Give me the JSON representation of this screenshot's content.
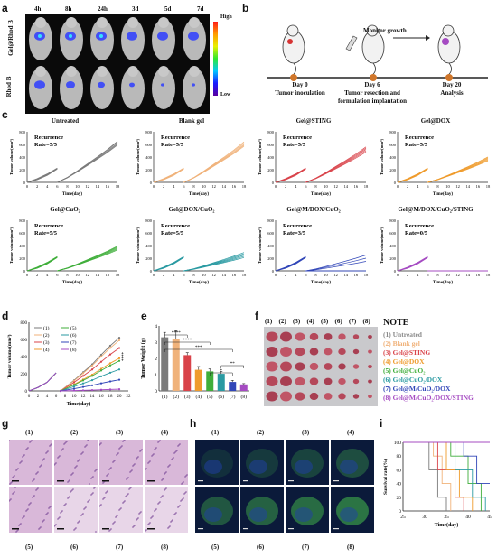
{
  "panel_labels": {
    "a": "a",
    "b": "b",
    "c": "c",
    "d": "d",
    "e": "e",
    "f": "f",
    "g": "g",
    "h": "h",
    "i": "i"
  },
  "panel_a": {
    "timepoints": [
      "4h",
      "8h",
      "24h",
      "3d",
      "5d",
      "7d"
    ],
    "row_labels": [
      "Gel@Rhod B",
      "Rhod B"
    ],
    "colorbar_high": "High",
    "colorbar_low": "Low"
  },
  "panel_b": {
    "monitor_text": "Monitor growth",
    "day0_title": "Day 0",
    "day0_sub": "Tumor inoculation",
    "day6_title": "Day 6",
    "day6_sub1": "Tumor resection and",
    "day6_sub2": "formulation implantation",
    "day20_title": "Day 20",
    "day20_sub": "Analysis"
  },
  "panel_c": {
    "ylabel": "Tumor volume(mm³)",
    "xlabel": "Time(day)",
    "y_ticks": [
      "800",
      "600",
      "400",
      "200",
      "0"
    ],
    "x_ticks": [
      "0",
      "2",
      "4",
      "6",
      "8",
      "10",
      "12",
      "14",
      "16",
      "18"
    ],
    "recurrence_label": "Recurrence",
    "subplots": [
      {
        "title": "Untreated",
        "rate": "Rate=5/5",
        "color": "#7a7a7a",
        "n": 5,
        "ends": [
          650,
          640,
          620,
          605,
          590
        ]
      },
      {
        "title": "Blank gel",
        "rate": "Rate=5/5",
        "color": "#f0b27a",
        "n": 5,
        "ends": [
          640,
          620,
          600,
          585,
          570
        ]
      },
      {
        "title": "Gel@STING",
        "rate": "Rate=5/5",
        "color": "#d9434a",
        "n": 5,
        "ends": [
          560,
          540,
          520,
          500,
          480
        ]
      },
      {
        "title": "Gel@DOX",
        "rate": "Rate=5/5",
        "color": "#ef9b2c",
        "n": 5,
        "ends": [
          400,
          385,
          370,
          355,
          340
        ]
      },
      {
        "title": "Gel@CuO₂",
        "rate": "Rate=5/5",
        "color": "#3fae3a",
        "n": 5,
        "ends": [
          390,
          375,
          360,
          345,
          330
        ]
      },
      {
        "title": "Gel@DOX/CuO₂",
        "rate": "Rate=5/5",
        "color": "#2a9aa2",
        "n": 5,
        "ends": [
          290,
          270,
          250,
          230,
          210
        ]
      },
      {
        "title": "Gel@M/DOX/CuO₂",
        "rate": "Rate=3/5",
        "color": "#3146b8",
        "n": 5,
        "ends": [
          250,
          200,
          150,
          0,
          0
        ]
      },
      {
        "title": "Gel@M/DOX/CuO₂/STING",
        "rate": "Rate=0/5",
        "color": "#a54bc2",
        "n": 5,
        "ends": [
          0,
          0,
          0,
          0,
          0
        ]
      }
    ]
  },
  "panel_d": {
    "ylabel": "Tumor volume(mm³)",
    "xlabel": "Time(day)",
    "y_ticks": [
      "800",
      "600",
      "400",
      "200",
      "0"
    ],
    "x_ticks": [
      "0",
      "2",
      "4",
      "6",
      "8",
      "10",
      "12",
      "14",
      "16",
      "18",
      "20",
      "22"
    ],
    "legend": [
      "(1)",
      "(2)",
      "(3)",
      "(4)",
      "(5)",
      "(6)",
      "(7)",
      "(8)"
    ],
    "significance": "****"
  },
  "chart_data": {
    "type": "bar",
    "title": "",
    "xlabel": "",
    "ylabel": "Tumor Weight (g)",
    "categories": [
      "(1)",
      "(2)",
      "(3)",
      "(4)",
      "(5)",
      "(6)",
      "(7)",
      "(8)"
    ],
    "values": [
      3.3,
      3.2,
      2.2,
      1.3,
      1.2,
      1.05,
      0.55,
      0.4
    ],
    "errors": [
      0.3,
      0.5,
      0.15,
      0.2,
      0.15,
      0.15,
      0.1,
      0.05
    ],
    "colors": [
      "#7a7a7a",
      "#f0b27a",
      "#d9434a",
      "#ef9b2c",
      "#3fae3a",
      "#2a9aa2",
      "#3146b8",
      "#a54bc2"
    ],
    "ylim": [
      0,
      4
    ],
    "y_ticks": [
      "4",
      "3",
      "2",
      "1",
      "0"
    ],
    "significance": [
      "****",
      "****",
      "***",
      "**",
      "*"
    ]
  },
  "panel_f": {
    "columns": [
      "(1)",
      "(2)",
      "(3)",
      "(4)",
      "(5)",
      "(6)",
      "(7)",
      "(8)"
    ],
    "note_title": "NOTE",
    "note_items": [
      {
        "text": "(1) Untreated",
        "color": "#8a8a8a"
      },
      {
        "text": "(2) Blank gel",
        "color": "#f0b27a"
      },
      {
        "text": "(3) Gel@STING",
        "color": "#d9434a"
      },
      {
        "text": "(4) Gel@DOX",
        "color": "#ef9b2c"
      },
      {
        "text": "(5) Gel@CuO₂",
        "color": "#3fae3a"
      },
      {
        "text": "(6) Gel@CuO₂/DOX",
        "color": "#2a9aa2"
      },
      {
        "text": "(7) Gel@M/CuO₂/DOX",
        "color": "#3146b8"
      },
      {
        "text": "(8) Gel@M/CuO₂/DOX/STING",
        "color": "#a54bc2"
      }
    ]
  },
  "panel_g": {
    "top_labels": [
      "(1)",
      "(2)",
      "(3)",
      "(4)"
    ],
    "bottom_labels": [
      "(5)",
      "(6)",
      "(7)",
      "(8)"
    ]
  },
  "panel_h": {
    "top_labels": [
      "(1)",
      "(2)",
      "(3)",
      "(4)"
    ],
    "bottom_labels": [
      "(5)",
      "(6)",
      "(7)",
      "(8)"
    ]
  },
  "panel_i": {
    "ylabel": "Survival rate(%)",
    "xlabel": "Time(day)",
    "y_ticks": [
      "100",
      "80",
      "60",
      "40",
      "20",
      "0"
    ],
    "x_ticks": [
      "25",
      "30",
      "35",
      "40",
      "45"
    ]
  }
}
